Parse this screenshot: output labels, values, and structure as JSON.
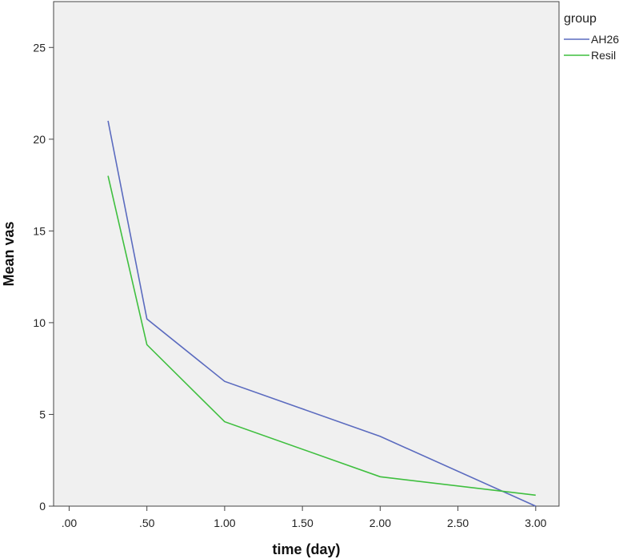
{
  "chart_data": {
    "type": "line",
    "xlabel": "time (day)",
    "ylabel": "Mean vas",
    "xlim": [
      -0.1,
      3.15
    ],
    "ylim": [
      0,
      27.5
    ],
    "xticks": [
      {
        "value": 0,
        "label": ".00"
      },
      {
        "value": 0.5,
        "label": ".50"
      },
      {
        "value": 1.0,
        "label": "1.00"
      },
      {
        "value": 1.5,
        "label": "1.50"
      },
      {
        "value": 2.0,
        "label": "2.00"
      },
      {
        "value": 2.5,
        "label": "2.50"
      },
      {
        "value": 3.0,
        "label": "3.00"
      }
    ],
    "yticks": [
      {
        "value": 0,
        "label": "0"
      },
      {
        "value": 5,
        "label": "5"
      },
      {
        "value": 10,
        "label": "10"
      },
      {
        "value": 15,
        "label": "15"
      },
      {
        "value": 20,
        "label": "20"
      },
      {
        "value": 25,
        "label": "25"
      }
    ],
    "grid": false,
    "legend": {
      "title": "group",
      "placement": "top-right"
    },
    "series": [
      {
        "name": "AH26",
        "color": "#5b6bbf",
        "x": [
          0.25,
          0.5,
          1.0,
          2.0,
          3.0
        ],
        "y": [
          21.0,
          10.2,
          6.8,
          3.8,
          0.0
        ]
      },
      {
        "name": "Resil",
        "color": "#3fbf3f",
        "x": [
          0.25,
          0.5,
          1.0,
          2.0,
          3.0
        ],
        "y": [
          18.0,
          8.8,
          4.6,
          1.6,
          0.6
        ]
      }
    ]
  }
}
